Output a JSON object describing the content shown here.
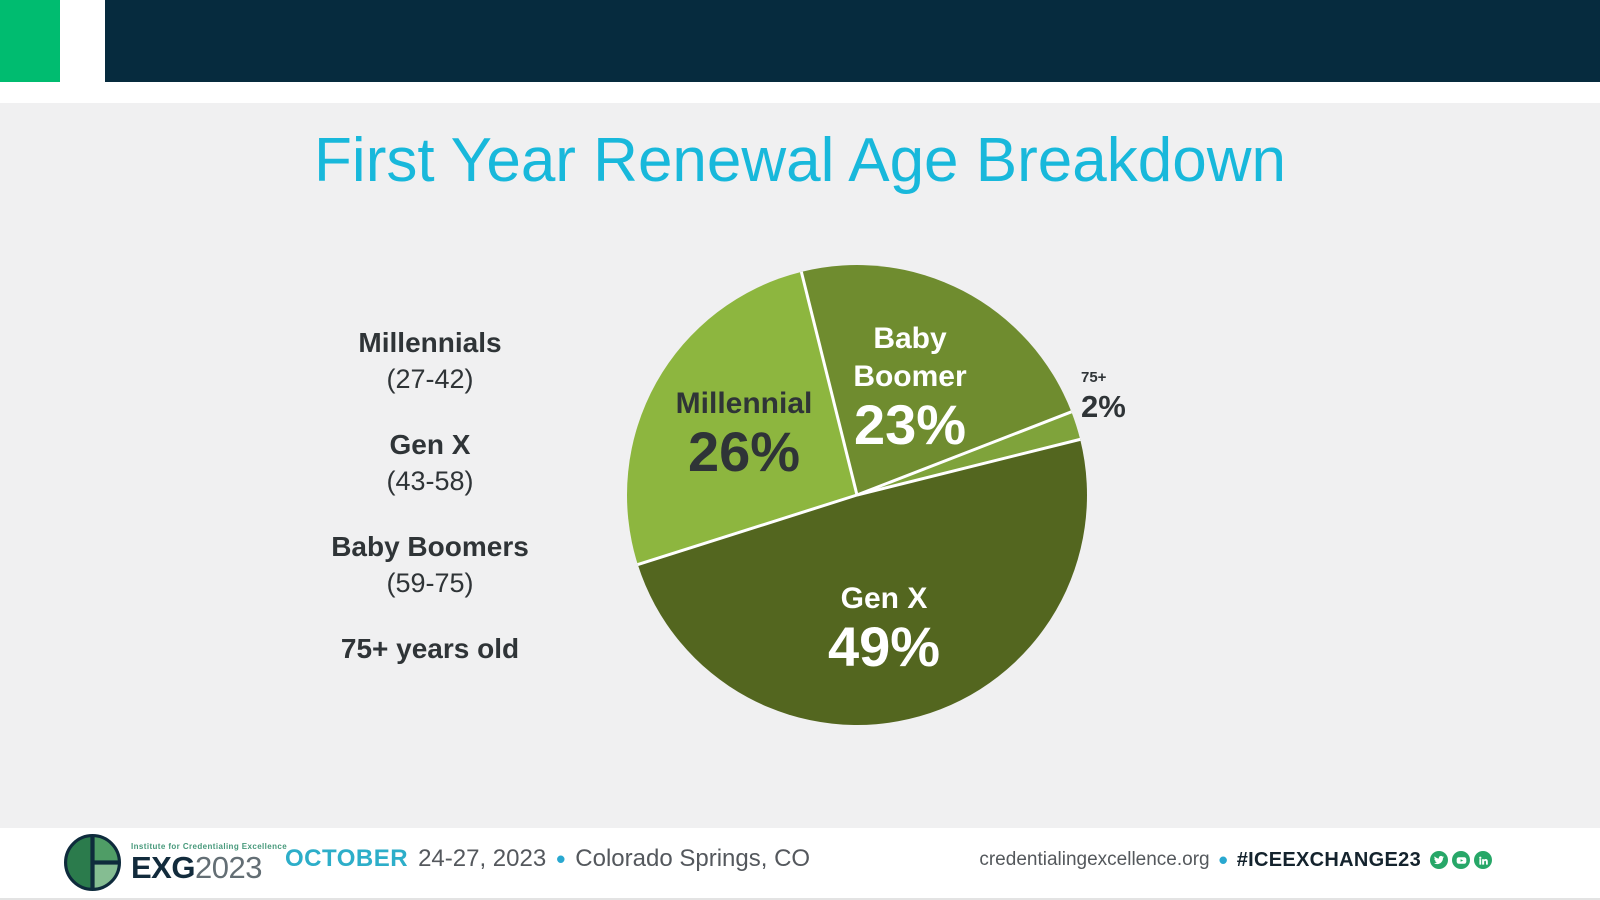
{
  "header": {
    "accent_square_color": "#00BC70",
    "bar_color": "#062B3E"
  },
  "title": {
    "text": "First Year Renewal Age Breakdown",
    "color": "#18B8DB"
  },
  "legend": {
    "items": [
      {
        "name": "Millennials",
        "range": "(27-42)"
      },
      {
        "name": "Gen X",
        "range": "(43-58)"
      },
      {
        "name": "Baby Boomers",
        "range": "(59-75)"
      },
      {
        "name": "75+ years old",
        "range": ""
      }
    ]
  },
  "chart_data": {
    "type": "pie",
    "title": "First Year Renewal Age Breakdown",
    "start_angle_deg": -14,
    "direction": "clockwise",
    "legend_position": "left",
    "separator_color": "#FFFFFF",
    "slices": [
      {
        "label": "Baby Boomer",
        "value": 23,
        "color": "#6F8C2F",
        "label_color": "#FFFFFF"
      },
      {
        "label": "75+",
        "value": 2,
        "color": "#7FA33B",
        "label_color": "#2F3437",
        "label_outside": true
      },
      {
        "label": "Gen X",
        "value": 49,
        "color": "#53661F",
        "label_color": "#FFFFFF"
      },
      {
        "label": "Millennial",
        "value": 26,
        "color": "#8DB63F",
        "label_color": "#2F3437"
      }
    ]
  },
  "pie_labels": {
    "millennial": {
      "name": "Millennial",
      "pct": "26%"
    },
    "baby_boomer": {
      "line1": "Baby",
      "line2": "Boomer",
      "pct": "23%"
    },
    "gen_x": {
      "name": "Gen X",
      "pct": "49%"
    },
    "seventy_five_plus": {
      "name": "75+",
      "pct": "2%"
    }
  },
  "footer": {
    "logo": {
      "tagline": "Institute for Credentialing Excellence",
      "brand_bold": "EXG",
      "brand_year": "2023"
    },
    "event": {
      "month": "OCTOBER",
      "dates": "24-27, 2023",
      "bullet": "•",
      "location": "Colorado Springs, CO"
    },
    "right": {
      "site": "credentialingexcellence.org",
      "bullet": "•",
      "hashtag": "#ICEEXCHANGE23",
      "social_icon_color": "#27A768",
      "social": [
        "twitter",
        "youtube",
        "linkedin"
      ]
    }
  }
}
